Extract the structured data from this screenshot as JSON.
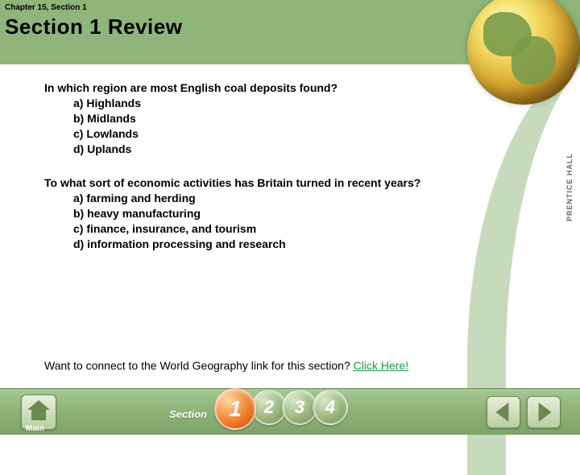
{
  "header": {
    "chapter_label": "Chapter 15, Section 1",
    "section_title": "Section 1 Review",
    "publisher_label": "PRENTICE HALL"
  },
  "questions": [
    {
      "prompt": "In which region are most English coal deposits found?",
      "options": [
        "a) Highlands",
        "b) Midlands",
        "c) Lowlands",
        "d) Uplands"
      ]
    },
    {
      "prompt": "To what sort of economic activities has Britain turned in recent years?",
      "options": [
        "a) farming and herding",
        "b) heavy manufacturing",
        "c) finance, insurance, and tourism",
        "d) information processing and research"
      ]
    }
  ],
  "footer_link": {
    "text": "Want to connect to the World Geography link for this section? ",
    "link_label": "Click Here!"
  },
  "bottombar": {
    "main_label": "Main",
    "section_label": "Section",
    "tabs": [
      "1",
      "2",
      "3",
      "4"
    ],
    "active_tab_index": 0
  },
  "colors": {
    "header_bg": "#8fb57a",
    "link": "#149a49",
    "tab_active": "#f08030",
    "tab_inactive": "#9ab87e"
  }
}
